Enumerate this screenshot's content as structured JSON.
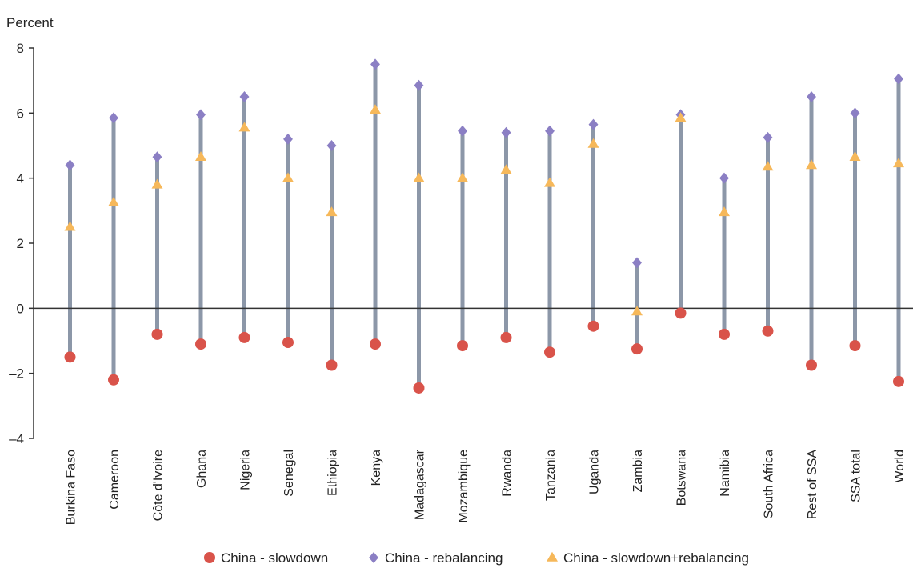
{
  "chart_data": {
    "type": "scatter",
    "ylabel": "Percent",
    "ylim": [
      -4,
      8
    ],
    "yticks": [
      -4,
      -2,
      0,
      2,
      4,
      6,
      8
    ],
    "grid": false,
    "legend_position": "bottom",
    "categories": [
      "Burkina Faso",
      "Cameroon",
      "Côte d'Ivoire",
      "Ghana",
      "Nigeria",
      "Senegal",
      "Ethiopia",
      "Kenya",
      "Madagascar",
      "Mozambique",
      "Rwanda",
      "Tanzania",
      "Uganda",
      "Zambia",
      "Botswana",
      "Namibia",
      "South Africa",
      "Rest of SSA",
      "SSA total",
      "World"
    ],
    "series": [
      {
        "name": "China - slowdown",
        "marker": "circle",
        "color": "#d9534a",
        "values": [
          -1.5,
          -2.2,
          -0.8,
          -1.1,
          -0.9,
          -1.05,
          -1.75,
          -1.1,
          -2.45,
          -1.15,
          -0.9,
          -1.35,
          -0.55,
          -1.25,
          -0.15,
          -0.8,
          -0.7,
          -1.75,
          -1.15,
          -2.25
        ]
      },
      {
        "name": "China - rebalancing",
        "marker": "diamond",
        "color": "#8b7fc4",
        "values": [
          4.4,
          5.85,
          4.65,
          5.95,
          6.5,
          5.2,
          5.0,
          7.5,
          6.85,
          5.45,
          5.4,
          5.45,
          5.65,
          1.4,
          5.95,
          4.0,
          5.25,
          6.5,
          6.0,
          7.05
        ]
      },
      {
        "name": "China - slowdown+rebalancing",
        "marker": "triangle",
        "color": "#f6b85a",
        "values": [
          2.5,
          3.25,
          3.8,
          4.65,
          5.55,
          4.0,
          2.95,
          6.1,
          4.0,
          4.0,
          4.25,
          3.85,
          5.05,
          -0.1,
          5.85,
          2.95,
          4.35,
          4.4,
          4.65,
          4.45
        ]
      }
    ],
    "range_line_color": "#8c97a8"
  }
}
